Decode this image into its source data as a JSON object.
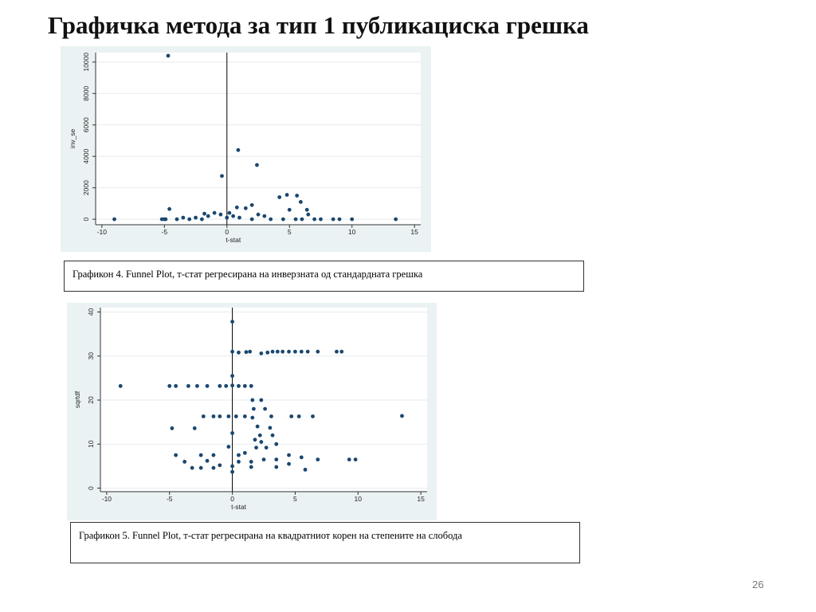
{
  "title": "Графичка метода за тип 1 публикациска грешка",
  "captions": [
    "Графикон 4. Funnel Plot, т-стат регресирана на инверзната од стандардната грешка",
    "Графикон 5. Funnel Plot, т-стат регресирана на квадратниот корен на степените на слобода"
  ],
  "page_number": "26",
  "chart_data": [
    {
      "type": "scatter",
      "x_label": "t-stat",
      "y_label": "inv_se",
      "color": "#1a476f",
      "grid": true,
      "reference_line_x": 0,
      "xlim": [
        -10.5,
        15.5
      ],
      "ylim": [
        -350,
        10600
      ],
      "xticks": [
        -10,
        -5,
        0,
        5,
        10,
        15
      ],
      "yticks": [
        0,
        2000,
        4000,
        6000,
        8000,
        10000
      ],
      "x": [
        -4.7,
        0.9,
        2.4,
        -0.4,
        -9,
        13.5,
        -4.6,
        4.8,
        4.2,
        5.6,
        5.9,
        6.4,
        5.0,
        2.0,
        1.5,
        0.8,
        -1.8,
        -1.0,
        -0.5,
        0.2,
        0.5,
        2.5,
        3,
        -5,
        -4,
        -3,
        -2.5,
        -2,
        -1.5,
        0,
        1,
        2,
        3.5,
        4.5,
        5.5,
        6,
        7,
        7.5,
        8.5,
        9,
        10,
        6.5,
        -3.5,
        -5.2,
        -4.9
      ],
      "values": [
        10400,
        4400,
        3450,
        2750,
        0,
        0,
        650,
        1550,
        1400,
        1500,
        1100,
        600,
        600,
        900,
        700,
        750,
        350,
        400,
        300,
        400,
        200,
        300,
        200,
        0,
        0,
        0,
        100,
        0,
        200,
        100,
        100,
        0,
        0,
        0,
        0,
        0,
        0,
        0,
        0,
        0,
        0,
        300,
        100,
        0,
        0
      ]
    },
    {
      "type": "scatter",
      "x_label": "t-stat",
      "y_label": "sqrtdf",
      "color": "#1a476f",
      "grid": true,
      "reference_line_x": 0,
      "xlim": [
        -10.5,
        15.5
      ],
      "ylim": [
        -0.8,
        41
      ],
      "xticks": [
        -10,
        -5,
        0,
        5,
        10,
        15
      ],
      "yticks": [
        0,
        10,
        20,
        30,
        40
      ],
      "x": [
        0,
        0,
        0.5,
        1.1,
        1.4,
        2.3,
        2.8,
        3.2,
        3.6,
        4.0,
        4.5,
        5.0,
        5.5,
        6.0,
        6.8,
        8.3,
        8.7,
        -8.9,
        -5,
        -4.5,
        -3.5,
        -2.8,
        -2,
        -1,
        -0.5,
        0,
        0.5,
        1,
        1.5,
        0,
        1.6,
        2.3,
        1.7,
        2.6,
        -4.8,
        -3,
        -2.3,
        -1.5,
        -1,
        -0.3,
        0.3,
        1,
        1.6,
        3.1,
        4.7,
        5.3,
        6.4,
        13.5,
        2,
        3,
        2.2,
        3.2,
        0,
        1.8,
        2.3,
        3.5,
        -0.3,
        1.9,
        2.7,
        -4.5,
        -2.5,
        -1.5,
        0.5,
        1,
        4.5,
        5.5,
        -3.8,
        -2,
        0.5,
        1.5,
        2.5,
        3.5,
        6.8,
        9.3,
        9.8,
        -3.2,
        -2.5,
        -1.5,
        1.5,
        3.5,
        5.8,
        0,
        0,
        4.5,
        -1
      ],
      "values": [
        37.8,
        31,
        30.8,
        30.9,
        31,
        30.6,
        30.8,
        31,
        31,
        31,
        31,
        31,
        31,
        31,
        31,
        31,
        31,
        23.2,
        23.2,
        23.2,
        23.2,
        23.2,
        23.2,
        23.2,
        23.2,
        23.3,
        23.2,
        23.2,
        23.2,
        25.5,
        20,
        20,
        18,
        18,
        13.6,
        13.6,
        16.3,
        16.3,
        16.3,
        16.3,
        16.3,
        16.3,
        16,
        16.3,
        16.3,
        16.3,
        16.3,
        16.4,
        14,
        13.7,
        12,
        12,
        12.5,
        11,
        10.5,
        10,
        9.4,
        9.2,
        9.2,
        7.5,
        7.5,
        7.5,
        7.5,
        8,
        7.5,
        7,
        6,
        6.2,
        6,
        6,
        6.5,
        6.5,
        6.5,
        6.5,
        6.5,
        4.6,
        4.6,
        4.6,
        4.8,
        4.8,
        4.2,
        5,
        3.7,
        5.5,
        5.2
      ]
    }
  ]
}
